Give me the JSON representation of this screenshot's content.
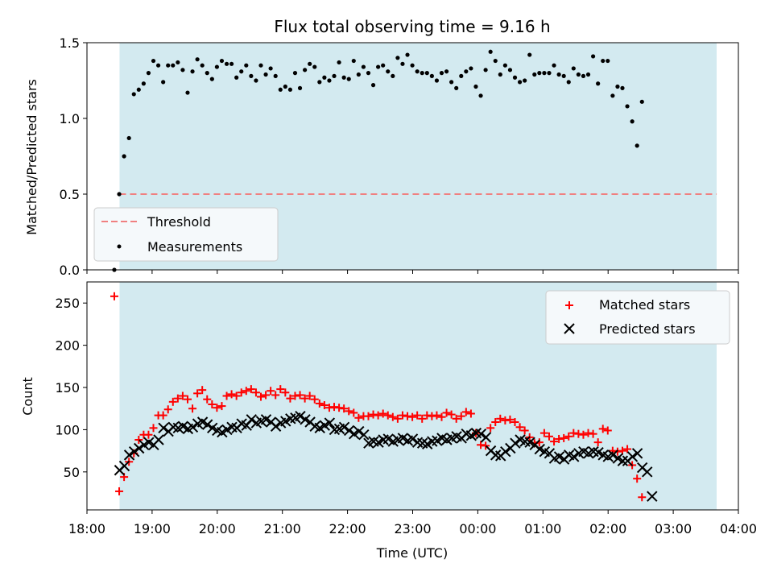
{
  "chart_data": [
    {
      "type": "scatter",
      "title": "Flux total observing time = 9.16 h",
      "ylabel": "Matched/Predicted stars",
      "ylim": [
        0,
        1.5
      ],
      "yticks": [
        "0.0",
        "0.5",
        "1.0",
        "1.5"
      ],
      "xlim": [
        "18:00",
        "04:00"
      ],
      "observing_window": [
        "18:30",
        "03:40"
      ],
      "window_color": "#d3eaf0",
      "threshold": {
        "name": "Threshold",
        "value": 0.5,
        "color": "#f08080",
        "style": "dashed"
      },
      "legend_position": "lower-left",
      "series": [
        {
          "name": "Measurements",
          "color": "#000000",
          "x_start_hour": 18.42,
          "x_step_hour": 0.075,
          "values": [
            0.0,
            0.5,
            0.75,
            0.87,
            1.16,
            1.19,
            1.23,
            1.3,
            1.38,
            1.35,
            1.24,
            1.35,
            1.35,
            1.37,
            1.32,
            1.17,
            1.31,
            1.39,
            1.35,
            1.3,
            1.26,
            1.34,
            1.38,
            1.36,
            1.36,
            1.27,
            1.31,
            1.35,
            1.28,
            1.25,
            1.35,
            1.29,
            1.33,
            1.28,
            1.19,
            1.21,
            1.19,
            1.3,
            1.2,
            1.32,
            1.36,
            1.34,
            1.24,
            1.27,
            1.25,
            1.28,
            1.37,
            1.27,
            1.26,
            1.38,
            1.29,
            1.34,
            1.3,
            1.22,
            1.34,
            1.35,
            1.31,
            1.28,
            1.4,
            1.36,
            1.42,
            1.35,
            1.31,
            1.3,
            1.3,
            1.28,
            1.25,
            1.3,
            1.31,
            1.24,
            1.2,
            1.28,
            1.31,
            1.33,
            1.21,
            1.15,
            1.32,
            1.44,
            1.38,
            1.29,
            1.35,
            1.32,
            1.27,
            1.24,
            1.25,
            1.42,
            1.29,
            1.3,
            1.3,
            1.3,
            1.35,
            1.29,
            1.28,
            1.24,
            1.33,
            1.29,
            1.28,
            1.29,
            1.41,
            1.23,
            1.38,
            1.38,
            1.15,
            1.21,
            1.2,
            1.08,
            0.98,
            0.82,
            1.11
          ]
        }
      ]
    },
    {
      "type": "scatter",
      "xlabel": "Time (UTC)",
      "ylabel": "Count",
      "ylim": [
        5,
        275
      ],
      "yticks": [
        "50",
        "100",
        "150",
        "200",
        "250"
      ],
      "xticks": [
        "18:00",
        "19:00",
        "20:00",
        "21:00",
        "22:00",
        "23:00",
        "00:00",
        "01:00",
        "02:00",
        "03:00",
        "04:00"
      ],
      "xlim": [
        "18:00",
        "04:00"
      ],
      "observing_window": [
        "18:30",
        "03:40"
      ],
      "window_color": "#d3eaf0",
      "legend_position": "upper-right",
      "series": [
        {
          "name": "Matched stars",
          "marker": "plus",
          "color": "#ff0000",
          "x_start_hour": 18.42,
          "x_step_hour": 0.075,
          "values": [
            258,
            27,
            44,
            62,
            72,
            88,
            94,
            94,
            102,
            117,
            117,
            124,
            133,
            137,
            140,
            136,
            125,
            143,
            147,
            136,
            130,
            126,
            128,
            140,
            142,
            140,
            144,
            146,
            148,
            144,
            139,
            141,
            146,
            141,
            148,
            144,
            137,
            140,
            141,
            137,
            140,
            136,
            131,
            129,
            126,
            127,
            126,
            125,
            122,
            120,
            114,
            116,
            116,
            118,
            117,
            119,
            117,
            115,
            113,
            117,
            116,
            115,
            117,
            113,
            117,
            116,
            117,
            115,
            120,
            118,
            113,
            116,
            121,
            119,
            96,
            82,
            81,
            102,
            109,
            113,
            111,
            112,
            109,
            103,
            99,
            91,
            84,
            85,
            96,
            92,
            86,
            89,
            90,
            92,
            96,
            95,
            94,
            96,
            95,
            85,
            101,
            99,
            75,
            74,
            75,
            77,
            58,
            42,
            20
          ]
        },
        {
          "name": "Predicted stars",
          "marker": "x",
          "color": "#000000",
          "x_start_hour": 18.5,
          "x_step_hour": 0.075,
          "values": [
            52,
            57,
            70,
            74,
            78,
            82,
            85,
            82,
            88,
            102,
            98,
            103,
            102,
            104,
            101,
            103,
            107,
            109,
            106,
            102,
            99,
            97,
            100,
            103,
            102,
            107,
            105,
            112,
            108,
            110,
            112,
            109,
            104,
            108,
            110,
            113,
            114,
            116,
            112,
            109,
            104,
            102,
            105,
            108,
            100,
            101,
            103,
            99,
            95,
            98,
            94,
            84,
            86,
            85,
            88,
            89,
            86,
            88,
            90,
            87,
            89,
            85,
            84,
            83,
            86,
            87,
            90,
            88,
            90,
            92,
            90,
            95,
            93,
            96,
            95,
            91,
            75,
            70,
            69,
            74,
            78,
            84,
            88,
            86,
            85,
            82,
            77,
            74,
            72,
            66,
            68,
            65,
            70,
            68,
            72,
            74,
            72,
            74,
            73,
            70,
            68,
            70,
            66,
            63,
            63,
            68,
            72,
            55,
            50,
            21
          ]
        }
      ]
    }
  ]
}
